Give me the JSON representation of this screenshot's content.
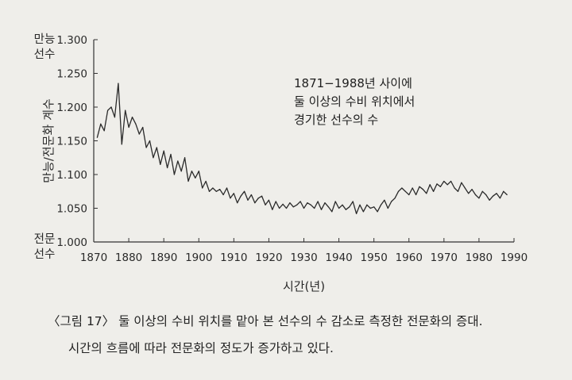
{
  "chart_data": {
    "type": "line",
    "xlabel": "시간(년)",
    "ylabel": "만능/전문화 계수",
    "ylim": [
      1.0,
      1.3
    ],
    "xlim": [
      1870,
      1990
    ],
    "xticks": [
      1870,
      1880,
      1890,
      1900,
      1910,
      1920,
      1930,
      1940,
      1950,
      1960,
      1970,
      1980,
      1990
    ],
    "yticks": [
      "1.000",
      "1.050",
      "1.100",
      "1.150",
      "1.200",
      "1.250",
      "1.300"
    ],
    "ytick_annotations": {
      "top": [
        "만능",
        "선수"
      ],
      "bottom": [
        "전문",
        "선수"
      ]
    },
    "annotation": [
      "1871−1988년 사이에",
      "둘 이상의 수비 위치에서",
      "경기한 선수의 수"
    ],
    "grid": false,
    "series": [
      {
        "x": [
          1871,
          1872,
          1873,
          1874,
          1875,
          1876,
          1877,
          1878,
          1879,
          1880,
          1881,
          1882,
          1883,
          1884,
          1885,
          1886,
          1887,
          1888,
          1889,
          1890,
          1891,
          1892,
          1893,
          1894,
          1895,
          1896,
          1897,
          1898,
          1899,
          1900,
          1901,
          1902,
          1903,
          1904,
          1905,
          1906,
          1907,
          1908,
          1909,
          1910,
          1911,
          1912,
          1913,
          1914,
          1915,
          1916,
          1917,
          1918,
          1919,
          1920,
          1921,
          1922,
          1923,
          1924,
          1925,
          1926,
          1927,
          1928,
          1929,
          1930,
          1931,
          1932,
          1933,
          1934,
          1935,
          1936,
          1937,
          1938,
          1939,
          1940,
          1941,
          1942,
          1943,
          1944,
          1945,
          1946,
          1947,
          1948,
          1949,
          1950,
          1951,
          1952,
          1953,
          1954,
          1955,
          1956,
          1957,
          1958,
          1959,
          1960,
          1961,
          1962,
          1963,
          1964,
          1965,
          1966,
          1967,
          1968,
          1969,
          1970,
          1971,
          1972,
          1973,
          1974,
          1975,
          1976,
          1977,
          1978,
          1979,
          1980,
          1981,
          1982,
          1983,
          1984,
          1985,
          1986,
          1987,
          1988
        ],
        "values": [
          1.155,
          1.175,
          1.165,
          1.195,
          1.2,
          1.185,
          1.235,
          1.145,
          1.195,
          1.17,
          1.185,
          1.175,
          1.16,
          1.17,
          1.14,
          1.15,
          1.125,
          1.14,
          1.115,
          1.135,
          1.11,
          1.13,
          1.1,
          1.12,
          1.105,
          1.125,
          1.09,
          1.105,
          1.095,
          1.105,
          1.08,
          1.09,
          1.075,
          1.08,
          1.075,
          1.078,
          1.07,
          1.08,
          1.065,
          1.072,
          1.058,
          1.068,
          1.075,
          1.062,
          1.07,
          1.058,
          1.065,
          1.068,
          1.055,
          1.062,
          1.048,
          1.06,
          1.05,
          1.056,
          1.05,
          1.058,
          1.052,
          1.055,
          1.06,
          1.05,
          1.058,
          1.055,
          1.05,
          1.06,
          1.048,
          1.058,
          1.052,
          1.045,
          1.06,
          1.05,
          1.055,
          1.048,
          1.052,
          1.06,
          1.042,
          1.055,
          1.045,
          1.055,
          1.05,
          1.052,
          1.045,
          1.055,
          1.062,
          1.05,
          1.06,
          1.065,
          1.075,
          1.08,
          1.075,
          1.07,
          1.08,
          1.07,
          1.082,
          1.078,
          1.072,
          1.085,
          1.075,
          1.086,
          1.082,
          1.09,
          1.085,
          1.09,
          1.08,
          1.075,
          1.088,
          1.08,
          1.072,
          1.078,
          1.07,
          1.065,
          1.075,
          1.07,
          1.062,
          1.068,
          1.072,
          1.065,
          1.075,
          1.07
        ]
      }
    ]
  },
  "caption": {
    "line1": "〈그림 17〉 둘 이상의 수비 위치를 맡아 본 선수의 수 감소로 측정한 전문화의 증대.",
    "line2": "시간의 흐름에 따라 전문화의 정도가 증가하고 있다."
  },
  "colors": {
    "line": "#2a2a2a",
    "axis": "#333333",
    "background": "#efeeea"
  }
}
